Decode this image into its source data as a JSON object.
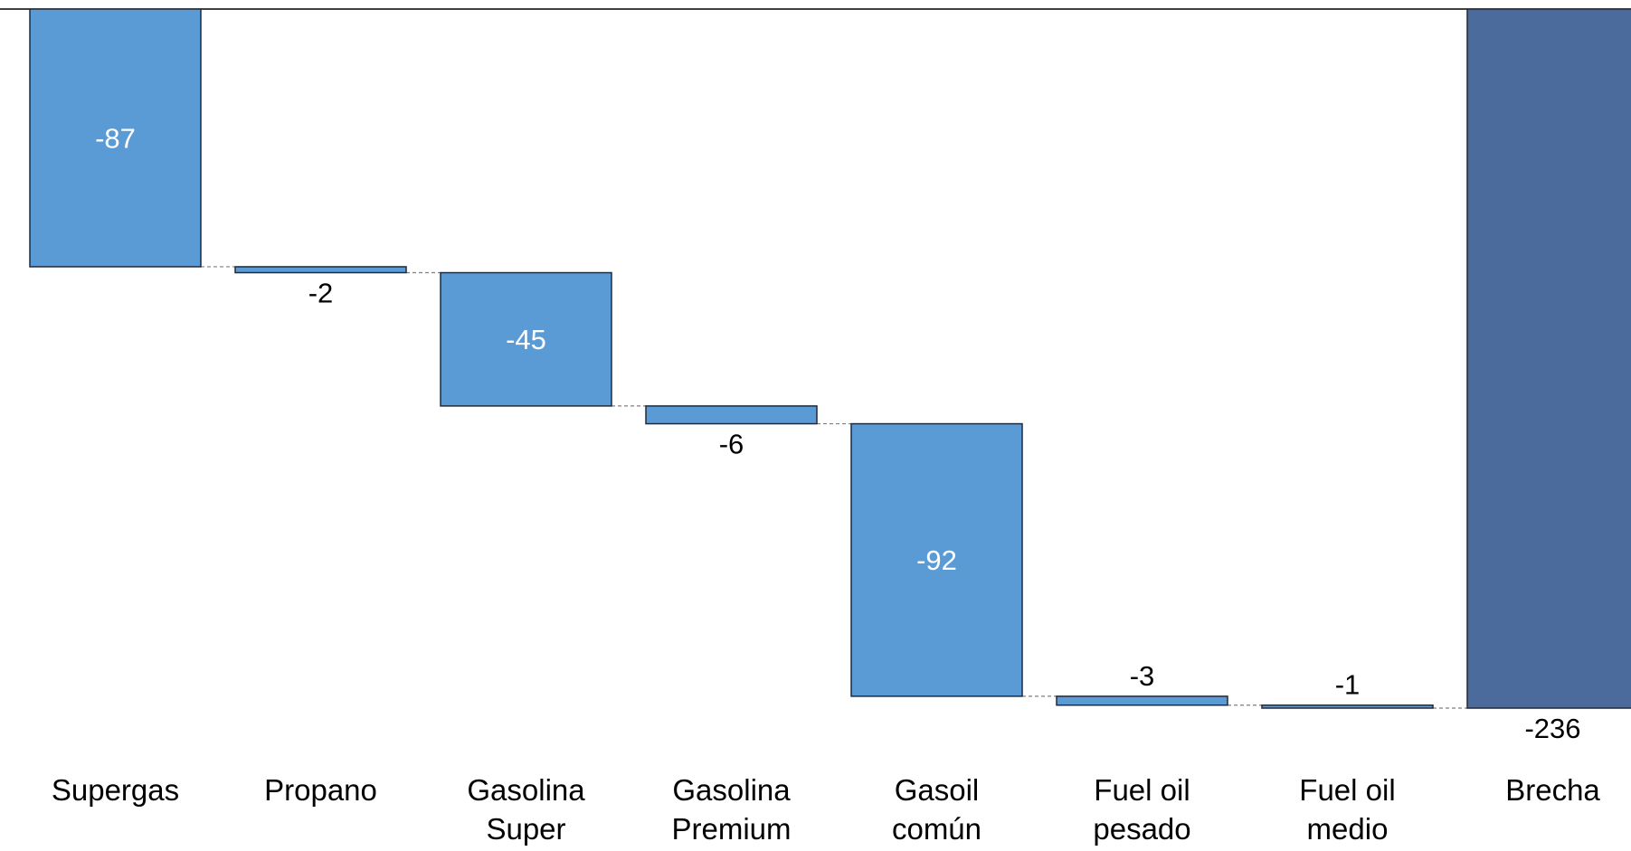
{
  "chart_data": {
    "type": "waterfall",
    "categories": [
      [
        "Supergas"
      ],
      [
        "Propano"
      ],
      [
        "Gasolina",
        "Super"
      ],
      [
        "Gasolina",
        "Premium"
      ],
      [
        "Gasoil",
        "común"
      ],
      [
        "Fuel oil",
        "pesado"
      ],
      [
        "Fuel oil",
        "medio"
      ],
      [
        "Brecha"
      ]
    ],
    "values": [
      -87,
      -2,
      -45,
      -6,
      -92,
      -3,
      -1,
      -236
    ],
    "labels": [
      "-87",
      "-2",
      "-45",
      "-6",
      "-92",
      "-3",
      "-1",
      "-236"
    ],
    "is_total": [
      false,
      false,
      false,
      false,
      false,
      false,
      false,
      true
    ],
    "ylim": [
      -236,
      0
    ],
    "colors": {
      "step": "#5b9bd5",
      "total": "#4a6b9b",
      "outline": "#1f2a3a",
      "label_dark": "#000000",
      "label_light": "#ffffff",
      "connector": "#7f7f7f"
    }
  }
}
